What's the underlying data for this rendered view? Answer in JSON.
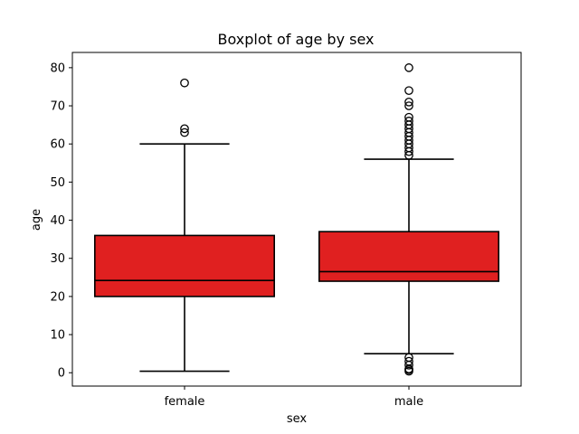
{
  "chart_data": {
    "type": "boxplot",
    "title": "Boxplot of age by sex",
    "xlabel": "sex",
    "ylabel": "age",
    "ylim": [
      -3.5,
      84
    ],
    "yticks": [
      0,
      10,
      20,
      30,
      40,
      50,
      60,
      70,
      80
    ],
    "categories": [
      "female",
      "male"
    ],
    "box_color": "#e02020",
    "edge_color": "#000000",
    "groups": [
      {
        "name": "female",
        "whisker_low": 0.4,
        "q1": 20,
        "median": 24.2,
        "q3": 36,
        "whisker_high": 60,
        "outliers": [
          63,
          64,
          76
        ]
      },
      {
        "name": "male",
        "whisker_low": 5,
        "q1": 24,
        "median": 26.5,
        "q3": 37,
        "whisker_high": 56,
        "outliers": [
          0.4,
          0.8,
          1,
          2,
          3,
          4,
          57,
          58,
          59,
          60,
          61,
          62,
          63,
          64,
          65,
          66,
          67,
          70,
          71,
          74,
          80
        ]
      }
    ]
  }
}
